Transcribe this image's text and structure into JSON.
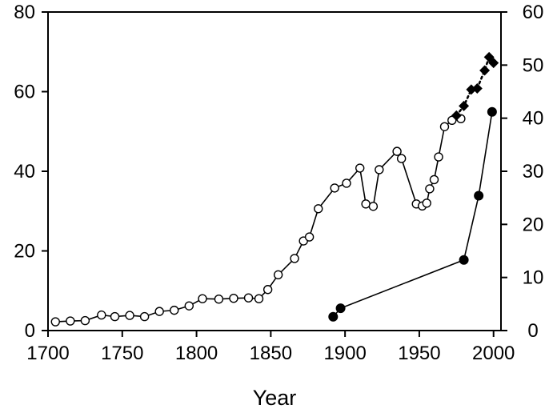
{
  "chart_data": {
    "type": "line",
    "title": "",
    "xlabel": "Year",
    "ylabel_left": "",
    "ylabel_right": "",
    "xlim": [
      1700,
      2005
    ],
    "ylim_left": [
      0,
      80
    ],
    "ylim_right": [
      0,
      60
    ],
    "x_ticks": [
      1700,
      1750,
      1800,
      1850,
      1900,
      1950,
      2000
    ],
    "y_ticks_left": [
      0,
      20,
      40,
      60,
      80
    ],
    "y_ticks_right": [
      0,
      10,
      20,
      30,
      40,
      50,
      60
    ],
    "grid": false,
    "legend": "none",
    "series": [
      {
        "axis": "left",
        "marker": "open-circle",
        "line": "solid",
        "points": [
          [
            1705,
            2.2
          ],
          [
            1715,
            2.4
          ],
          [
            1725,
            2.5
          ],
          [
            1736,
            3.9
          ],
          [
            1745,
            3.5
          ],
          [
            1755,
            3.8
          ],
          [
            1765,
            3.5
          ],
          [
            1775,
            4.8
          ],
          [
            1785,
            5.1
          ],
          [
            1795,
            6.2
          ],
          [
            1804,
            8.0
          ],
          [
            1815,
            7.9
          ],
          [
            1825,
            8.1
          ],
          [
            1835,
            8.2
          ],
          [
            1842,
            8.0
          ],
          [
            1848,
            10.3
          ],
          [
            1855,
            14.0
          ],
          [
            1866,
            18.1
          ],
          [
            1872,
            22.5
          ],
          [
            1876,
            23.5
          ],
          [
            1882,
            30.6
          ],
          [
            1893,
            35.8
          ],
          [
            1901,
            37.0
          ],
          [
            1910,
            40.8
          ],
          [
            1914,
            31.8
          ],
          [
            1919,
            31.2
          ],
          [
            1923,
            40.4
          ],
          [
            1935,
            45.0
          ],
          [
            1938,
            43.2
          ],
          [
            1948,
            31.8
          ],
          [
            1952,
            31.3
          ],
          [
            1955,
            32.0
          ],
          [
            1957,
            35.6
          ],
          [
            1960,
            37.9
          ],
          [
            1963,
            43.6
          ],
          [
            1967,
            51.2
          ],
          [
            1972,
            52.8
          ],
          [
            1978,
            53.2
          ]
        ]
      },
      {
        "axis": "right",
        "marker": "filled-diamond",
        "line": "dotted",
        "points": [
          [
            1975,
            40.5
          ],
          [
            1980,
            42.3
          ],
          [
            1985,
            45.4
          ],
          [
            1989,
            45.6
          ],
          [
            1994,
            49.0
          ],
          [
            1997,
            51.5
          ],
          [
            2000,
            50.4
          ]
        ]
      },
      {
        "axis": "right",
        "marker": "filled-circle",
        "line": "solid",
        "points": [
          [
            1892,
            2.6
          ],
          [
            1897,
            4.2
          ],
          [
            1980,
            13.3
          ],
          [
            1990,
            25.4
          ],
          [
            1999,
            41.2
          ]
        ]
      }
    ]
  }
}
